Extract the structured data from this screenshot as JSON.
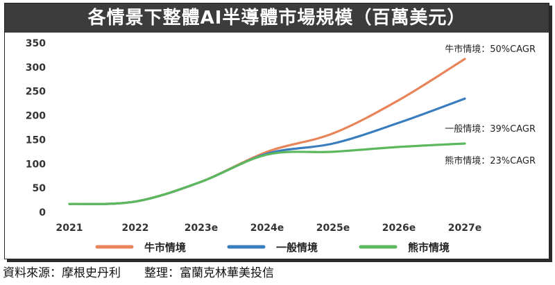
{
  "header": {
    "title": "各情景下整體AI半導體市場規模（百萬美元）"
  },
  "footer": {
    "source": "資料來源：摩根史丹利",
    "compiled_by": "整理：富蘭克林華美投信"
  },
  "chart_data": {
    "type": "line",
    "title": "各情景下整體AI半導體市場規模（百萬美元）",
    "xlabel": "",
    "ylabel": "",
    "x": [
      "2021",
      "2022",
      "2023e",
      "2024e",
      "2025e",
      "2026e",
      "2027e"
    ],
    "ylim": [
      0,
      350
    ],
    "yticks": [
      "0",
      "50",
      "100",
      "150",
      "200",
      "250",
      "300",
      "350"
    ],
    "grid": false,
    "legend": "bottom",
    "series": [
      {
        "name": "牛市情境",
        "color": "#e8845a",
        "values": [
          17,
          22,
          63,
          125,
          163,
          232,
          317
        ],
        "annotation": "牛市情境：50%CAGR"
      },
      {
        "name": "一般情境",
        "color": "#3a7dbf",
        "values": [
          17,
          22,
          63,
          121,
          142,
          185,
          235
        ],
        "annotation": "一般情境：39%CAGR"
      },
      {
        "name": "熊市情境",
        "color": "#5cb85c",
        "values": [
          17,
          22,
          63,
          119,
          125,
          135,
          142
        ],
        "annotation": "熊市情境：23%CAGR"
      }
    ]
  }
}
